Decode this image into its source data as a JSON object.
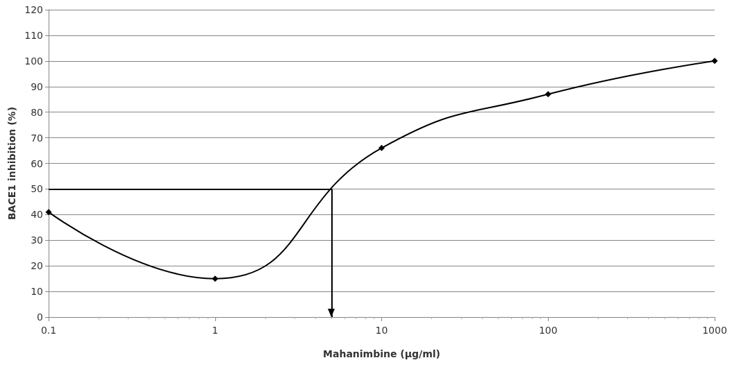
{
  "chart_data": {
    "type": "line",
    "xlabel": "Mahanimbine (µg/ml)",
    "ylabel": "BACE1 inhibition (%)",
    "log": "x",
    "xlim": [
      0.1,
      1000
    ],
    "xticks": [
      0.1,
      1,
      10,
      100,
      1000
    ],
    "ylim": [
      0,
      120
    ],
    "yticks": [
      0,
      10,
      20,
      30,
      40,
      50,
      60,
      70,
      80,
      90,
      100,
      110,
      120
    ],
    "grid": "y",
    "series": [
      {
        "color": "#000000",
        "x": [
          0.1,
          1,
          10,
          100,
          1000
        ],
        "values": [
          41,
          15,
          66,
          87,
          100
        ],
        "marker": "diamond"
      }
    ],
    "ref_lines": [
      {
        "axis": "y",
        "value": 50,
        "color": "#000000"
      },
      {
        "axis": "x",
        "value": 5,
        "color": "#000000"
      }
    ]
  }
}
